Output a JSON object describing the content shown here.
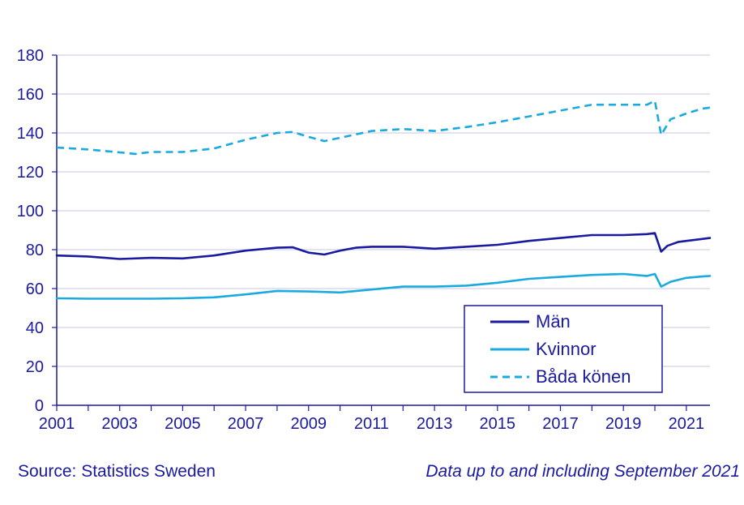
{
  "chart_data": {
    "type": "line",
    "xlim": [
      2001,
      2021.75
    ],
    "ylim": [
      0,
      180
    ],
    "yticks": [
      0,
      20,
      40,
      60,
      80,
      100,
      120,
      140,
      160,
      180
    ],
    "xticks": [
      2001,
      2003,
      2005,
      2007,
      2009,
      2011,
      2013,
      2015,
      2017,
      2019,
      2021
    ],
    "grid": true,
    "legend_position": "bottom-right",
    "series": [
      {
        "name": "Män",
        "color": "#1a1aa0",
        "style": "solid",
        "x": [
          2001,
          2002,
          2003,
          2004,
          2005,
          2006,
          2007,
          2008,
          2008.5,
          2009,
          2009.5,
          2010,
          2010.5,
          2011,
          2012,
          2013,
          2014,
          2015,
          2016,
          2017,
          2018,
          2019,
          2019.75,
          2020.0,
          2020.2,
          2020.4,
          2020.75,
          2021,
          2021.5,
          2021.75
        ],
        "values": [
          77,
          76.5,
          75.2,
          75.8,
          75.5,
          77,
          79.5,
          81,
          81.2,
          78.5,
          77.5,
          79.5,
          81,
          81.5,
          81.5,
          80.5,
          81.5,
          82.5,
          84.5,
          86,
          87.5,
          87.5,
          88,
          88.5,
          79,
          82,
          84,
          84.5,
          85.5,
          86
        ]
      },
      {
        "name": "Kvinnor",
        "color": "#1aaae0",
        "style": "solid",
        "x": [
          2001,
          2002,
          2003,
          2004,
          2005,
          2006,
          2007,
          2008,
          2009,
          2010,
          2011,
          2012,
          2013,
          2014,
          2015,
          2016,
          2017,
          2018,
          2019,
          2019.75,
          2020.0,
          2020.2,
          2020.5,
          2021,
          2021.5,
          2021.75
        ],
        "values": [
          55,
          54.8,
          54.8,
          54.8,
          55,
          55.5,
          57,
          58.8,
          58.5,
          58,
          59.5,
          61,
          61,
          61.5,
          63,
          65,
          66,
          67,
          67.5,
          66.5,
          67.5,
          61,
          63.5,
          65.5,
          66.2,
          66.5
        ]
      },
      {
        "name": "Båda könen",
        "color": "#1aaae0",
        "style": "dashed",
        "x": [
          2001,
          2002,
          2003,
          2003.5,
          2004,
          2005,
          2006,
          2007,
          2008,
          2008.5,
          2009,
          2009.5,
          2010,
          2011,
          2012,
          2013,
          2014,
          2015,
          2016,
          2017,
          2018,
          2019,
          2019.75,
          2020.0,
          2020.2,
          2020.5,
          2021,
          2021.5,
          2021.75
        ],
        "values": [
          132.5,
          131.5,
          130,
          129.2,
          130.2,
          130.2,
          132,
          136.5,
          140,
          140.5,
          138,
          135.8,
          137.5,
          141,
          142,
          141,
          143,
          145.5,
          148.5,
          151.5,
          154.5,
          154.5,
          154.5,
          156.5,
          139,
          147,
          150,
          152.5,
          153
        ]
      }
    ]
  },
  "footer": {
    "source": "Source: Statistics Sweden",
    "note": "Data up to and including September 2021"
  }
}
